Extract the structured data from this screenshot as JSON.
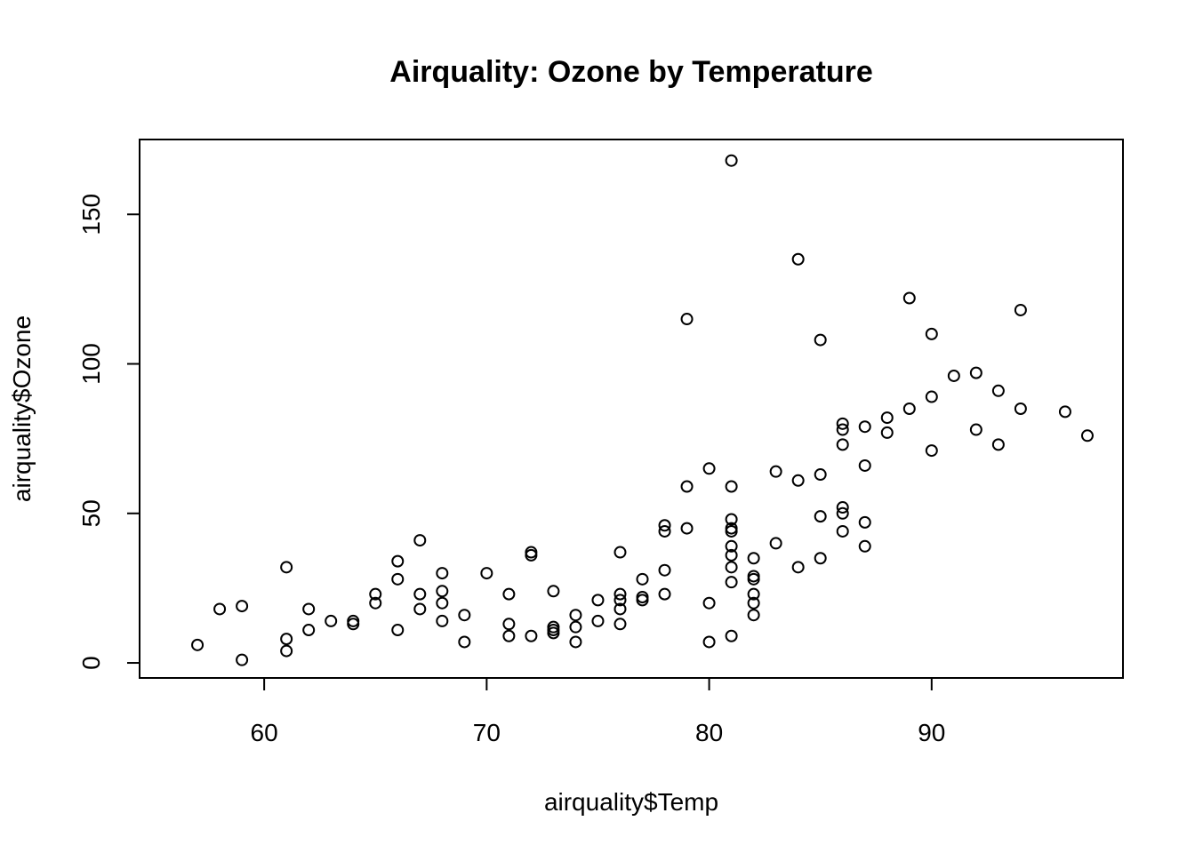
{
  "chart_data": {
    "type": "scatter",
    "title": "Airquality: Ozone by Temperature",
    "xlabel": "airquality$Temp",
    "ylabel": "airquality$Ozone",
    "xlim": [
      54.4,
      98.6
    ],
    "ylim": [
      -5.04,
      175.04
    ],
    "xticks": [
      60,
      70,
      80,
      90
    ],
    "yticks": [
      0,
      50,
      100,
      150
    ],
    "grid": false,
    "legend": "none",
    "marker": "open-circle",
    "points": [
      [
        57,
        6
      ],
      [
        58,
        18
      ],
      [
        59,
        19
      ],
      [
        59,
        1
      ],
      [
        61,
        32
      ],
      [
        61,
        8
      ],
      [
        61,
        4
      ],
      [
        62,
        18
      ],
      [
        62,
        11
      ],
      [
        63,
        14
      ],
      [
        64,
        14
      ],
      [
        64,
        13
      ],
      [
        65,
        23
      ],
      [
        65,
        20
      ],
      [
        66,
        34
      ],
      [
        66,
        28
      ],
      [
        66,
        11
      ],
      [
        67,
        41
      ],
      [
        67,
        23
      ],
      [
        67,
        18
      ],
      [
        68,
        30
      ],
      [
        68,
        24
      ],
      [
        68,
        20
      ],
      [
        68,
        14
      ],
      [
        69,
        16
      ],
      [
        69,
        7
      ],
      [
        70,
        30
      ],
      [
        71,
        23
      ],
      [
        71,
        13
      ],
      [
        71,
        9
      ],
      [
        72,
        37
      ],
      [
        72,
        36
      ],
      [
        72,
        9
      ],
      [
        73,
        24
      ],
      [
        73,
        12
      ],
      [
        73,
        11
      ],
      [
        73,
        10
      ],
      [
        74,
        16
      ],
      [
        74,
        12
      ],
      [
        74,
        7
      ],
      [
        75,
        21
      ],
      [
        75,
        14
      ],
      [
        76,
        37
      ],
      [
        76,
        23
      ],
      [
        76,
        21
      ],
      [
        76,
        18
      ],
      [
        76,
        13
      ],
      [
        77,
        28
      ],
      [
        77,
        22
      ],
      [
        77,
        21
      ],
      [
        78,
        46
      ],
      [
        78,
        44
      ],
      [
        78,
        31
      ],
      [
        78,
        23
      ],
      [
        79,
        115
      ],
      [
        79,
        59
      ],
      [
        79,
        45
      ],
      [
        80,
        65
      ],
      [
        80,
        20
      ],
      [
        80,
        7
      ],
      [
        81,
        168
      ],
      [
        81,
        59
      ],
      [
        81,
        48
      ],
      [
        81,
        45
      ],
      [
        81,
        44
      ],
      [
        81,
        39
      ],
      [
        81,
        36
      ],
      [
        81,
        32
      ],
      [
        81,
        27
      ],
      [
        81,
        9
      ],
      [
        82,
        35
      ],
      [
        82,
        29
      ],
      [
        82,
        28
      ],
      [
        82,
        23
      ],
      [
        82,
        20
      ],
      [
        82,
        16
      ],
      [
        83,
        64
      ],
      [
        83,
        40
      ],
      [
        84,
        135
      ],
      [
        84,
        61
      ],
      [
        84,
        32
      ],
      [
        85,
        108
      ],
      [
        85,
        63
      ],
      [
        85,
        49
      ],
      [
        85,
        35
      ],
      [
        86,
        80
      ],
      [
        86,
        78
      ],
      [
        86,
        73
      ],
      [
        86,
        52
      ],
      [
        86,
        50
      ],
      [
        86,
        44
      ],
      [
        87,
        79
      ],
      [
        87,
        66
      ],
      [
        87,
        47
      ],
      [
        87,
        39
      ],
      [
        88,
        82
      ],
      [
        88,
        77
      ],
      [
        89,
        122
      ],
      [
        89,
        85
      ],
      [
        90,
        110
      ],
      [
        90,
        89
      ],
      [
        90,
        71
      ],
      [
        91,
        96
      ],
      [
        92,
        97
      ],
      [
        92,
        78
      ],
      [
        93,
        91
      ],
      [
        93,
        73
      ],
      [
        94,
        118
      ],
      [
        94,
        85
      ],
      [
        96,
        84
      ],
      [
        97,
        76
      ]
    ]
  }
}
